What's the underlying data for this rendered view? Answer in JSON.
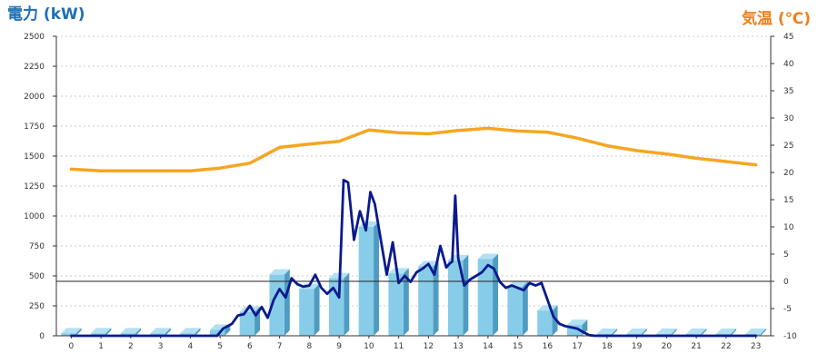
{
  "chart_data": {
    "type": "bar",
    "title_left": "電力 (kW)",
    "title_right": "気温 (℃)",
    "x_ticks": [
      "0",
      "1",
      "2",
      "3",
      "4",
      "5",
      "6",
      "7",
      "8",
      "9",
      "10",
      "11",
      "12",
      "13",
      "14",
      "15",
      "16",
      "17",
      "18",
      "19",
      "20",
      "21",
      "22",
      "23"
    ],
    "y_left": {
      "min": 0,
      "max": 2500,
      "step": 250,
      "ticks": [
        "0",
        "250",
        "500",
        "750",
        "1000",
        "1250",
        "1500",
        "1750",
        "2000",
        "2250",
        "2500"
      ]
    },
    "y_right": {
      "min": -10,
      "max": 45,
      "step": 5,
      "ticks": [
        "-10",
        "-5",
        "0",
        "5",
        "10",
        "15",
        "20",
        "25",
        "30",
        "35",
        "40",
        "45"
      ]
    },
    "grid": "horizontal-dashed",
    "reference_line": {
      "axis": "right",
      "value": 0
    },
    "bars": {
      "axis": "left",
      "categories": [
        "0",
        "1",
        "2",
        "3",
        "4",
        "5",
        "6",
        "7",
        "8",
        "9",
        "10",
        "11",
        "12",
        "13",
        "14",
        "15",
        "16",
        "17",
        "18",
        "19",
        "20",
        "21",
        "22",
        "23"
      ],
      "values": [
        20,
        20,
        20,
        20,
        20,
        50,
        200,
        510,
        390,
        480,
        910,
        520,
        580,
        630,
        640,
        410,
        210,
        90,
        15,
        15,
        15,
        15,
        15,
        15
      ],
      "color": "#87cce8"
    },
    "series": [
      {
        "axis": "left",
        "color": "#0a1a8c",
        "x": [
          0,
          1,
          2,
          3,
          4,
          4.9,
          5.1,
          5.4,
          5.6,
          5.8,
          6.0,
          6.2,
          6.4,
          6.6,
          6.8,
          7.0,
          7.2,
          7.4,
          7.6,
          7.8,
          8.0,
          8.2,
          8.4,
          8.6,
          8.8,
          9.0,
          9.15,
          9.3,
          9.5,
          9.7,
          9.9,
          10.05,
          10.2,
          10.4,
          10.6,
          10.8,
          11.0,
          11.2,
          11.4,
          11.6,
          11.8,
          12.0,
          12.2,
          12.4,
          12.6,
          12.7,
          12.8,
          12.9,
          13.0,
          13.2,
          13.4,
          13.6,
          13.8,
          14.0,
          14.2,
          14.4,
          14.6,
          14.8,
          15.0,
          15.2,
          15.4,
          15.6,
          15.8,
          16.0,
          16.2,
          16.4,
          16.6,
          16.8,
          17.0,
          17.2,
          17.4,
          17.6,
          18,
          19,
          20,
          21,
          22,
          23
        ],
        "values": [
          0,
          0,
          0,
          0,
          0,
          0,
          60,
          100,
          170,
          180,
          250,
          170,
          240,
          150,
          300,
          390,
          320,
          480,
          430,
          410,
          420,
          510,
          400,
          350,
          400,
          320,
          1300,
          1280,
          800,
          1040,
          880,
          1200,
          1100,
          800,
          510,
          780,
          440,
          500,
          450,
          530,
          560,
          600,
          510,
          750,
          570,
          600,
          620,
          1170,
          650,
          420,
          470,
          500,
          530,
          590,
          560,
          450,
          400,
          420,
          400,
          380,
          440,
          420,
          440,
          300,
          160,
          100,
          80,
          70,
          60,
          30,
          5,
          0,
          0,
          0,
          0,
          0,
          0,
          0
        ]
      },
      {
        "axis": "right",
        "color": "#f5a623",
        "x": [
          0,
          1,
          2,
          3,
          4,
          5,
          6,
          7,
          8,
          9,
          10,
          11,
          12,
          13,
          14,
          15,
          16,
          17,
          18,
          19,
          20,
          21,
          22,
          23
        ],
        "values": [
          20.6,
          20.3,
          20.3,
          20.3,
          20.3,
          20.8,
          21.7,
          24.6,
          25.2,
          25.7,
          27.8,
          27.3,
          27.1,
          27.7,
          28.1,
          27.6,
          27.4,
          26.3,
          24.9,
          24.0,
          23.4,
          22.6,
          22.0,
          21.4
        ]
      }
    ]
  }
}
